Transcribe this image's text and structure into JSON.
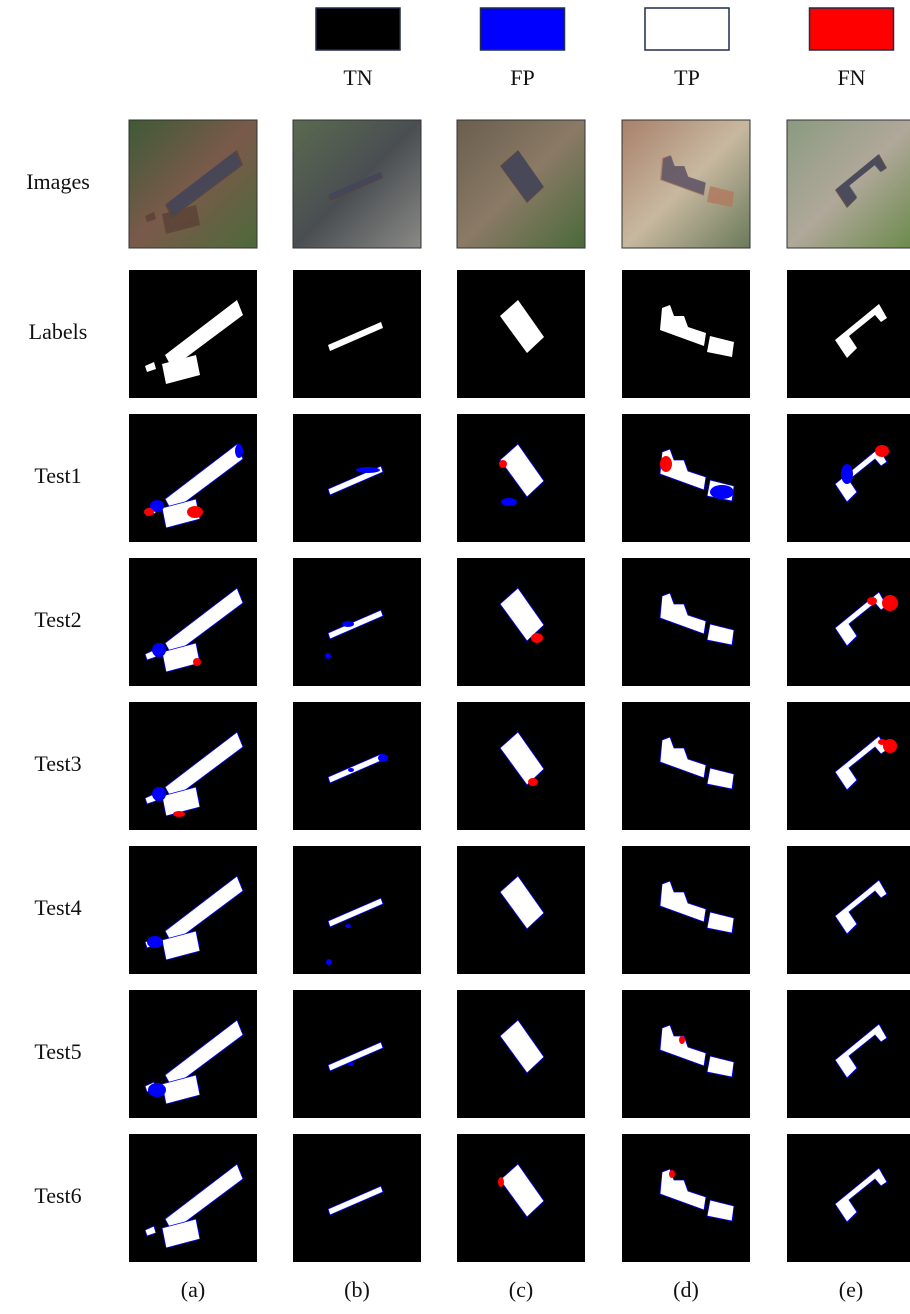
{
  "legend": [
    {
      "label": "TN",
      "color": "#000000"
    },
    {
      "label": "FP",
      "color": "#0000ff"
    },
    {
      "label": "TP",
      "color": "#ffffff"
    },
    {
      "label": "FN",
      "color": "#ff0000"
    }
  ],
  "rows": [
    "Images",
    "Labels",
    "Test1",
    "Test2",
    "Test3",
    "Test4",
    "Test5",
    "Test6"
  ],
  "columns": [
    "(a)",
    "(b)",
    "(c)",
    "(d)",
    "(e)"
  ]
}
